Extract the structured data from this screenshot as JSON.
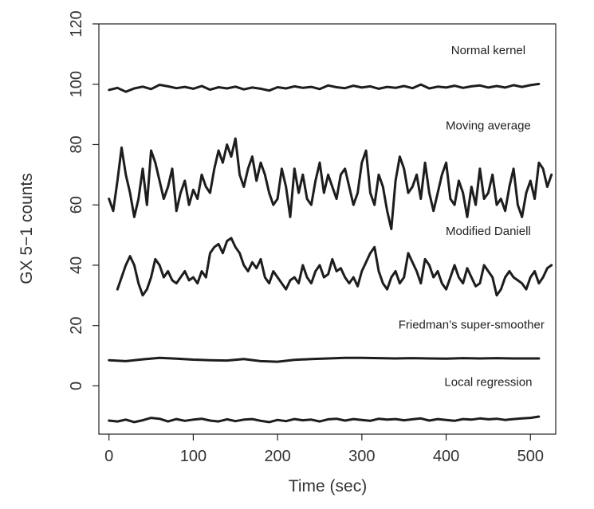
{
  "chart_data": {
    "type": "line",
    "title": "",
    "xlabel": "Time (sec)",
    "ylabel": "GX 5−1 counts",
    "xlim": [
      -12,
      530
    ],
    "ylim": [
      -16,
      120
    ],
    "xticks": [
      0,
      100,
      200,
      300,
      400,
      500
    ],
    "yticks": [
      0,
      20,
      40,
      60,
      80,
      100,
      120
    ],
    "xtick_labels": [
      "0",
      "100",
      "200",
      "300",
      "400",
      "500"
    ],
    "ytick_labels": [
      "0",
      "20",
      "40",
      "60",
      "80",
      "100",
      "120"
    ],
    "grid": false,
    "legend": "none",
    "annotations": [
      {
        "text": "Normal kernel",
        "x": 450,
        "y": 110
      },
      {
        "text": "Moving average",
        "x": 450,
        "y": 85
      },
      {
        "text": "Modified Daniell",
        "x": 450,
        "y": 50
      },
      {
        "text": "Friedman’s super-smoother",
        "x": 430,
        "y": 19
      },
      {
        "text": "Local regression",
        "x": 450,
        "y": 0
      }
    ],
    "series": [
      {
        "x": [
          0,
          10,
          20,
          30,
          40,
          50,
          60,
          70,
          80,
          90,
          100,
          110,
          120,
          130,
          140,
          150,
          160,
          170,
          180,
          190,
          200,
          210,
          220,
          230,
          240,
          250,
          260,
          270,
          280,
          290,
          300,
          310,
          320,
          330,
          340,
          350,
          360,
          370,
          380,
          390,
          400,
          410,
          420,
          430,
          440,
          450,
          460,
          470,
          480,
          490,
          500,
          510
        ],
        "values": [
          98.1,
          98.8,
          97.5,
          98.6,
          99.2,
          98.4,
          99.8,
          99.3,
          98.7,
          99.1,
          98.5,
          99.4,
          98.2,
          99.0,
          98.6,
          99.2,
          98.3,
          98.9,
          98.5,
          97.9,
          99.0,
          98.6,
          99.3,
          98.8,
          99.1,
          98.4,
          99.6,
          99.0,
          98.7,
          99.5,
          98.9,
          99.3,
          98.5,
          99.1,
          98.8,
          99.4,
          98.7,
          99.9,
          98.6,
          99.2,
          98.9,
          99.5,
          98.8,
          99.3,
          99.6,
          98.9,
          99.4,
          98.9,
          99.7,
          99.1,
          99.7,
          100.1
        ]
      },
      {
        "x": [
          0,
          5,
          10,
          15,
          20,
          25,
          30,
          35,
          40,
          45,
          50,
          55,
          60,
          65,
          70,
          75,
          80,
          85,
          90,
          95,
          100,
          105,
          110,
          115,
          120,
          125,
          130,
          135,
          140,
          145,
          150,
          155,
          160,
          165,
          170,
          175,
          180,
          185,
          190,
          195,
          200,
          205,
          210,
          215,
          220,
          225,
          230,
          235,
          240,
          245,
          250,
          255,
          260,
          265,
          270,
          275,
          280,
          285,
          290,
          295,
          300,
          305,
          310,
          315,
          320,
          325,
          330,
          335,
          340,
          345,
          350,
          355,
          360,
          365,
          370,
          375,
          380,
          385,
          390,
          395,
          400,
          405,
          410,
          415,
          420,
          425,
          430,
          435,
          440,
          445,
          450,
          455,
          460,
          465,
          470,
          475,
          480,
          485,
          490,
          495,
          500,
          505,
          510,
          515,
          520,
          525
        ],
        "values": [
          62,
          58,
          68,
          79,
          70,
          64,
          56,
          62,
          72,
          60,
          78,
          74,
          68,
          62,
          66,
          72,
          58,
          64,
          68,
          60,
          65,
          62,
          70,
          66,
          64,
          72,
          78,
          74,
          80,
          76,
          82,
          70,
          66,
          72,
          76,
          68,
          74,
          70,
          64,
          60,
          62,
          72,
          66,
          56,
          72,
          64,
          70,
          62,
          60,
          68,
          74,
          64,
          70,
          66,
          62,
          70,
          72,
          66,
          60,
          64,
          74,
          78,
          64,
          60,
          70,
          66,
          58,
          52,
          68,
          76,
          72,
          64,
          66,
          70,
          62,
          74,
          64,
          58,
          64,
          70,
          74,
          62,
          60,
          68,
          64,
          56,
          66,
          60,
          72,
          62,
          64,
          70,
          60,
          62,
          58,
          66,
          72,
          60,
          56,
          64,
          68,
          62,
          74,
          72,
          66,
          70
        ]
      },
      {
        "x": [
          10,
          15,
          20,
          25,
          30,
          35,
          40,
          45,
          50,
          55,
          60,
          65,
          70,
          75,
          80,
          85,
          90,
          95,
          100,
          105,
          110,
          115,
          120,
          125,
          130,
          135,
          140,
          145,
          150,
          155,
          160,
          165,
          170,
          175,
          180,
          185,
          190,
          195,
          200,
          205,
          210,
          215,
          220,
          225,
          230,
          235,
          240,
          245,
          250,
          255,
          260,
          265,
          270,
          275,
          280,
          285,
          290,
          295,
          300,
          305,
          310,
          315,
          320,
          325,
          330,
          335,
          340,
          345,
          350,
          355,
          360,
          365,
          370,
          375,
          380,
          385,
          390,
          395,
          400,
          405,
          410,
          415,
          420,
          425,
          430,
          435,
          440,
          445,
          450,
          455,
          460,
          465,
          470,
          475,
          480,
          485,
          490,
          495,
          500,
          505,
          510,
          515,
          520,
          525
        ],
        "values": [
          32,
          36,
          40,
          43,
          40,
          34,
          30,
          32,
          36,
          42,
          40,
          36,
          38,
          35,
          34,
          36,
          38,
          35,
          36,
          34,
          38,
          36,
          44,
          46,
          47,
          44,
          48,
          49,
          46,
          44,
          40,
          38,
          41,
          39,
          42,
          36,
          34,
          38,
          36,
          34,
          32,
          35,
          36,
          34,
          40,
          36,
          34,
          38,
          40,
          36,
          37,
          42,
          38,
          39,
          36,
          34,
          36,
          33,
          38,
          41,
          44,
          46,
          38,
          34,
          32,
          36,
          38,
          34,
          36,
          44,
          41,
          38,
          34,
          42,
          40,
          36,
          38,
          34,
          32,
          36,
          40,
          36,
          34,
          39,
          36,
          33,
          34,
          40,
          38,
          36,
          30,
          32,
          36,
          38,
          36,
          35,
          34,
          32,
          36,
          38,
          34,
          36,
          39,
          40
        ]
      },
      {
        "x": [
          0,
          20,
          40,
          60,
          80,
          100,
          120,
          140,
          160,
          180,
          200,
          220,
          240,
          260,
          280,
          300,
          320,
          340,
          360,
          380,
          400,
          420,
          440,
          460,
          480,
          500,
          510
        ],
        "values": [
          8.5,
          8.2,
          8.8,
          9.3,
          9.0,
          8.7,
          8.5,
          8.4,
          8.9,
          8.2,
          8.0,
          8.6,
          8.9,
          9.1,
          9.3,
          9.3,
          9.2,
          9.1,
          9.2,
          9.1,
          9.0,
          9.2,
          9.1,
          9.2,
          9.1,
          9.1,
          9.1
        ]
      },
      {
        "x": [
          0,
          10,
          20,
          30,
          40,
          50,
          60,
          70,
          80,
          90,
          100,
          110,
          120,
          130,
          140,
          150,
          160,
          170,
          180,
          190,
          200,
          210,
          220,
          230,
          240,
          250,
          260,
          270,
          280,
          290,
          300,
          310,
          320,
          330,
          340,
          350,
          360,
          370,
          380,
          390,
          400,
          410,
          420,
          430,
          440,
          450,
          460,
          470,
          480,
          490,
          500,
          510
        ],
        "values": [
          -11.5,
          -11.8,
          -11.2,
          -12.0,
          -11.4,
          -10.6,
          -10.9,
          -11.8,
          -11.0,
          -11.6,
          -11.2,
          -10.9,
          -11.5,
          -11.8,
          -11.1,
          -11.7,
          -11.2,
          -11.0,
          -11.6,
          -12.0,
          -11.3,
          -11.7,
          -11.0,
          -11.4,
          -11.2,
          -11.8,
          -11.1,
          -10.9,
          -11.5,
          -11.0,
          -11.3,
          -11.6,
          -10.9,
          -11.2,
          -11.0,
          -11.4,
          -11.1,
          -10.8,
          -11.5,
          -11.0,
          -11.3,
          -11.6,
          -11.0,
          -11.2,
          -10.8,
          -11.1,
          -10.9,
          -11.3,
          -11.0,
          -10.8,
          -10.6,
          -10.2
        ]
      }
    ]
  }
}
